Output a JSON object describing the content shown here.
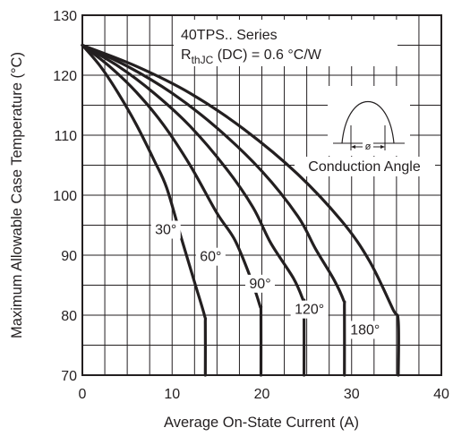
{
  "chart_data": {
    "type": "line",
    "xlabel": "Average On-State Current (A)",
    "ylabel": "Maximum Allowable Case Temperature (°C)",
    "xlim": [
      0,
      40
    ],
    "ylim": [
      70,
      130
    ],
    "xticks": [
      "0",
      "10",
      "20",
      "30",
      "40"
    ],
    "yticks": [
      "70",
      "80",
      "90",
      "100",
      "110",
      "120",
      "130"
    ],
    "grid": true,
    "annotations": {
      "series_title": "40TPS.. Series",
      "rth_main": "R",
      "rth_sub": "thJC",
      "rth_rest": " (DC) = 0.6 °C/W",
      "conduction_label": "Conduction Angle",
      "phi_symbol": "ø"
    },
    "series": [
      {
        "name": "30°",
        "points": [
          [
            0,
            125
          ],
          [
            2,
            121.5
          ],
          [
            4,
            117
          ],
          [
            6,
            111.8
          ],
          [
            8,
            105.8
          ],
          [
            9.4,
            101.2
          ],
          [
            11,
            93
          ],
          [
            12.5,
            85.5
          ],
          [
            13.6,
            80
          ],
          [
            13.7,
            78.5
          ],
          [
            13.7,
            70
          ]
        ]
      },
      {
        "name": "60°",
        "points": [
          [
            0,
            125
          ],
          [
            3,
            121.5
          ],
          [
            6,
            117.2
          ],
          [
            9,
            111.8
          ],
          [
            12,
            105
          ],
          [
            15,
            97
          ],
          [
            17,
            92.5
          ],
          [
            18.8,
            86
          ],
          [
            19.8,
            81.5
          ],
          [
            19.9,
            80.5
          ],
          [
            19.9,
            70
          ]
        ]
      },
      {
        "name": "90°",
        "points": [
          [
            0,
            125
          ],
          [
            4,
            121.5
          ],
          [
            8,
            117
          ],
          [
            12,
            111.5
          ],
          [
            16,
            104.5
          ],
          [
            19,
            98
          ],
          [
            21,
            92
          ],
          [
            23.5,
            86.2
          ],
          [
            24.6,
            82.5
          ],
          [
            24.7,
            81.5
          ],
          [
            24.7,
            70
          ]
        ]
      },
      {
        "name": "120°",
        "points": [
          [
            0,
            125
          ],
          [
            5,
            121.5
          ],
          [
            10,
            117
          ],
          [
            15,
            111.2
          ],
          [
            20,
            104
          ],
          [
            24,
            96.5
          ],
          [
            26,
            91
          ],
          [
            28,
            86
          ],
          [
            29.1,
            82.5
          ],
          [
            29.2,
            81
          ],
          [
            29.2,
            70
          ]
        ]
      },
      {
        "name": "180°",
        "points": [
          [
            0,
            125
          ],
          [
            6,
            121.5
          ],
          [
            12,
            117
          ],
          [
            18,
            111
          ],
          [
            24,
            103.5
          ],
          [
            29,
            95.5
          ],
          [
            32,
            89
          ],
          [
            34.6,
            81
          ],
          [
            35.2,
            79
          ],
          [
            35.2,
            70
          ]
        ]
      }
    ]
  }
}
